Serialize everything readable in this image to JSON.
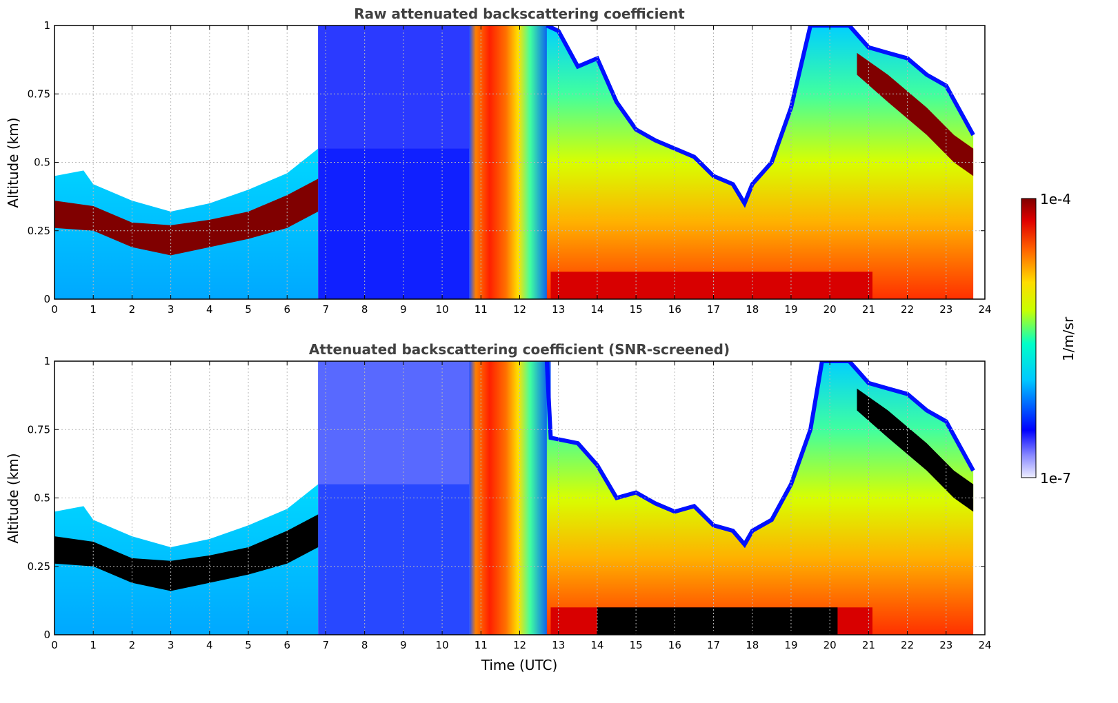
{
  "chart_data": [
    {
      "type": "heatmap",
      "id": "raw",
      "title": "Raw attenuated backscattering coefficient",
      "xlabel": "",
      "ylabel": "Altitude (km)",
      "xlim": [
        0,
        24
      ],
      "ylim": [
        0,
        1
      ],
      "x_ticks": [
        "0",
        "1",
        "2",
        "3",
        "4",
        "5",
        "6",
        "7",
        "8",
        "9",
        "10",
        "11",
        "12",
        "13",
        "14",
        "15",
        "16",
        "17",
        "18",
        "19",
        "20",
        "21",
        "22",
        "23",
        "24"
      ],
      "y_ticks": [
        "0",
        "0.25",
        "0.5",
        "0.75",
        "1"
      ],
      "grid": true,
      "data_end_time": 23.7,
      "aerosol_layer_top_km": [
        [
          0,
          0.45
        ],
        [
          0.75,
          0.47
        ],
        [
          1,
          0.42
        ],
        [
          2,
          0.36
        ],
        [
          3,
          0.32
        ],
        [
          4,
          0.35
        ],
        [
          5,
          0.4
        ],
        [
          6,
          0.46
        ],
        [
          6.8,
          0.55
        ],
        [
          12.7,
          1.0
        ],
        [
          13,
          0.98
        ],
        [
          13.5,
          0.85
        ],
        [
          14,
          0.88
        ],
        [
          14.5,
          0.72
        ],
        [
          15,
          0.62
        ],
        [
          15.5,
          0.58
        ],
        [
          16,
          0.55
        ],
        [
          16.5,
          0.52
        ],
        [
          17,
          0.45
        ],
        [
          17.5,
          0.42
        ],
        [
          17.8,
          0.35
        ],
        [
          18,
          0.42
        ],
        [
          18.5,
          0.5
        ],
        [
          19,
          0.7
        ],
        [
          19.5,
          1.0
        ],
        [
          20.5,
          1.0
        ],
        [
          21,
          0.92
        ],
        [
          21.5,
          0.9
        ],
        [
          22,
          0.88
        ],
        [
          22.5,
          0.82
        ],
        [
          23,
          0.78
        ],
        [
          23.7,
          0.6
        ]
      ],
      "dense_layer_km": [
        [
          0,
          0.26,
          0.36
        ],
        [
          1,
          0.25,
          0.34
        ],
        [
          2,
          0.19,
          0.28
        ],
        [
          3,
          0.16,
          0.27
        ],
        [
          4,
          0.19,
          0.29
        ],
        [
          5,
          0.22,
          0.32
        ],
        [
          6,
          0.26,
          0.38
        ],
        [
          6.8,
          0.32,
          0.44
        ],
        [
          20.7,
          0.82,
          0.9
        ],
        [
          21.5,
          0.72,
          0.82
        ],
        [
          22.5,
          0.6,
          0.7
        ],
        [
          23.2,
          0.5,
          0.6
        ],
        [
          23.7,
          0.45,
          0.55
        ]
      ]
    },
    {
      "type": "heatmap",
      "id": "screened",
      "title": "Attenuated backscattering coefficient (SNR-screened)",
      "xlabel": "Time (UTC)",
      "ylabel": "Altitude (km)",
      "xlim": [
        0,
        24
      ],
      "ylim": [
        0,
        1
      ],
      "x_ticks": [
        "0",
        "1",
        "2",
        "3",
        "4",
        "5",
        "6",
        "7",
        "8",
        "9",
        "10",
        "11",
        "12",
        "13",
        "14",
        "15",
        "16",
        "17",
        "18",
        "19",
        "20",
        "21",
        "22",
        "23",
        "24"
      ],
      "y_ticks": [
        "0",
        "0.25",
        "0.5",
        "0.75",
        "1"
      ],
      "grid": true,
      "data_end_time": 23.7,
      "aerosol_layer_top_km": [
        [
          0,
          0.45
        ],
        [
          0.75,
          0.47
        ],
        [
          1,
          0.42
        ],
        [
          2,
          0.36
        ],
        [
          3,
          0.32
        ],
        [
          4,
          0.35
        ],
        [
          5,
          0.4
        ],
        [
          6,
          0.46
        ],
        [
          6.8,
          0.55
        ],
        [
          12.7,
          1.0
        ],
        [
          12.8,
          0.72
        ],
        [
          13.5,
          0.7
        ],
        [
          14,
          0.62
        ],
        [
          14.5,
          0.5
        ],
        [
          15,
          0.52
        ],
        [
          15.5,
          0.48
        ],
        [
          16,
          0.45
        ],
        [
          16.5,
          0.47
        ],
        [
          17,
          0.4
        ],
        [
          17.5,
          0.38
        ],
        [
          17.8,
          0.33
        ],
        [
          18,
          0.38
        ],
        [
          18.5,
          0.42
        ],
        [
          19,
          0.55
        ],
        [
          19.5,
          0.75
        ],
        [
          19.8,
          1.0
        ],
        [
          20.5,
          1.0
        ],
        [
          21,
          0.92
        ],
        [
          21.5,
          0.9
        ],
        [
          22,
          0.88
        ],
        [
          22.5,
          0.82
        ],
        [
          23,
          0.78
        ],
        [
          23.7,
          0.6
        ]
      ],
      "saturated_layer_km": [
        [
          0,
          0.26,
          0.36
        ],
        [
          1,
          0.25,
          0.34
        ],
        [
          2,
          0.19,
          0.28
        ],
        [
          3,
          0.16,
          0.27
        ],
        [
          4,
          0.19,
          0.29
        ],
        [
          5,
          0.22,
          0.32
        ],
        [
          6,
          0.26,
          0.38
        ],
        [
          6.8,
          0.32,
          0.44
        ],
        [
          20.7,
          0.82,
          0.9
        ],
        [
          21.5,
          0.72,
          0.82
        ],
        [
          22.5,
          0.6,
          0.7
        ],
        [
          23.2,
          0.5,
          0.6
        ],
        [
          23.7,
          0.45,
          0.55
        ]
      ],
      "saturated_surface_block": {
        "time_start": 14.0,
        "time_end": 20.2,
        "alt_top_km": 0.1
      }
    }
  ],
  "colorbar": {
    "label": "1/m/sr",
    "max_label": "1e-4",
    "min_label": "1e-7",
    "scale": "log",
    "colors": [
      "#f0f0ff",
      "#0000ff",
      "#00c0ff",
      "#00ffc0",
      "#c0ff00",
      "#ffd000",
      "#ff6000",
      "#e00000",
      "#800000"
    ]
  }
}
